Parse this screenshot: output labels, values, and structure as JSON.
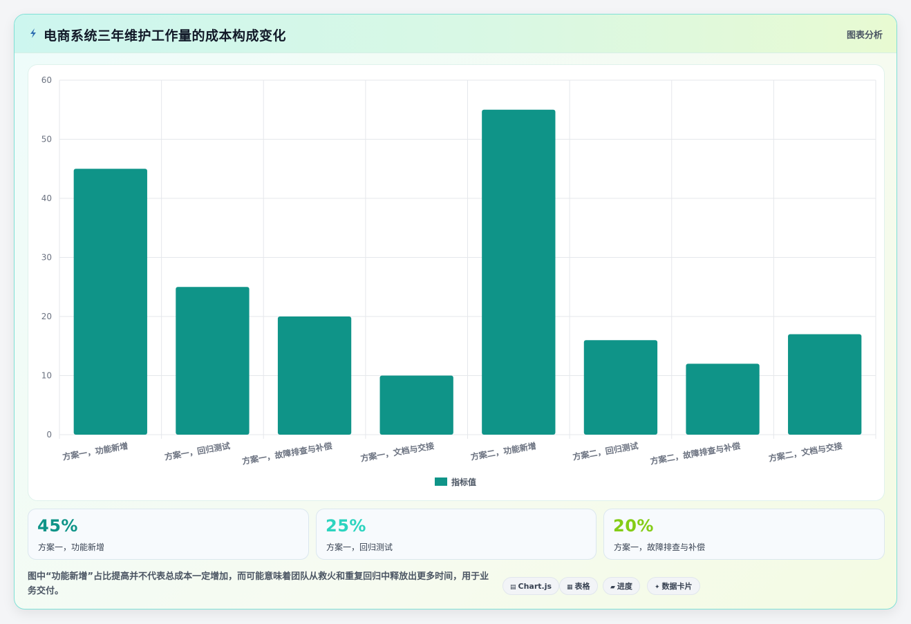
{
  "header": {
    "title": "电商系统三年维护工作量的成本构成变化",
    "link_label": "图表分析",
    "icon": "lightning-icon"
  },
  "chart_data": {
    "type": "bar",
    "categories": [
      "方案一，功能新增",
      "方案一，回归测试",
      "方案一，故障排查与补偿",
      "方案一，文档与交接",
      "方案二，功能新增",
      "方案二，回归测试",
      "方案二，故障排查与补偿",
      "方案二，文档与交接"
    ],
    "series": [
      {
        "name": "指标值",
        "values": [
          45,
          25,
          20,
          10,
          55,
          16,
          12,
          17
        ],
        "color": "#0f9488"
      }
    ],
    "ylim": [
      0,
      60
    ],
    "yticks": [
      0,
      10,
      20,
      30,
      40,
      50,
      60
    ],
    "grid": true,
    "legend": "bottom"
  },
  "stats": [
    {
      "value": "45%",
      "label": "方案一，功能新增",
      "color": "#0f9488"
    },
    {
      "value": "25%",
      "label": "方案一，回归测试",
      "color": "#2dd4bf"
    },
    {
      "value": "20%",
      "label": "方案一，故障排查与补偿",
      "color": "#84cc16"
    }
  ],
  "note": "图中“功能新增”占比提高并不代表总成本一定增加，而可能意味着团队从救火和重复回归中释放出更多时间，用于业务交付。",
  "chips": [
    {
      "icon": "chart-icon",
      "glyph": "▤",
      "label": "Chart.js"
    },
    {
      "icon": "table-icon",
      "glyph": "▦",
      "label": "表格"
    },
    {
      "icon": "progress-icon",
      "glyph": "▰",
      "label": "进度"
    },
    {
      "icon": "card-icon",
      "glyph": "✦",
      "label": "数据卡片"
    }
  ]
}
